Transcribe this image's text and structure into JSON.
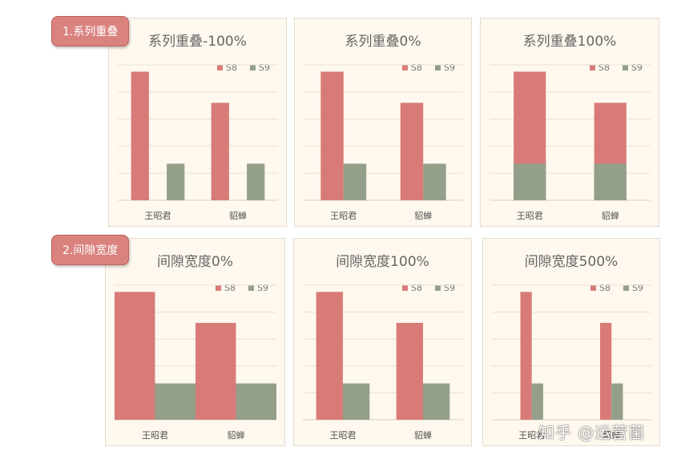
{
  "sections": [
    {
      "label": "1.系列重叠"
    },
    {
      "label": "2.间隙宽度"
    }
  ],
  "colors": {
    "S8": "#d87b78",
    "S9": "#949f8a",
    "tag": "#d9827e",
    "panel": "#fef8ee"
  },
  "watermark": "知乎 @运营菌",
  "chart_data": [
    {
      "type": "bar",
      "title": "系列重叠-100%",
      "categories": [
        "王昭君",
        "貂蝉"
      ],
      "series": [
        {
          "name": "S8",
          "values": [
            95,
            72
          ]
        },
        {
          "name": "S9",
          "values": [
            27,
            27
          ]
        }
      ],
      "ylim": [
        0,
        100
      ],
      "grid": true,
      "legend": "top-right",
      "overlap_pct": -100,
      "gap_width_pct": 150
    },
    {
      "type": "bar",
      "title": "系列重叠0%",
      "categories": [
        "王昭君",
        "貂蝉"
      ],
      "series": [
        {
          "name": "S8",
          "values": [
            95,
            72
          ]
        },
        {
          "name": "S9",
          "values": [
            27,
            27
          ]
        }
      ],
      "ylim": [
        0,
        100
      ],
      "grid": true,
      "legend": "top-right",
      "overlap_pct": 0,
      "gap_width_pct": 150
    },
    {
      "type": "bar",
      "title": "系列重叠100%",
      "categories": [
        "王昭君",
        "貂蝉"
      ],
      "series": [
        {
          "name": "S8",
          "values": [
            95,
            72
          ]
        },
        {
          "name": "S9",
          "values": [
            27,
            27
          ]
        }
      ],
      "ylim": [
        0,
        100
      ],
      "grid": true,
      "legend": "top-right",
      "overlap_pct": 100,
      "gap_width_pct": 150
    },
    {
      "type": "bar",
      "title": "间隙宽度0%",
      "categories": [
        "王昭君",
        "貂蝉"
      ],
      "series": [
        {
          "name": "S8",
          "values": [
            95,
            72
          ]
        },
        {
          "name": "S9",
          "values": [
            27,
            27
          ]
        }
      ],
      "ylim": [
        0,
        100
      ],
      "grid": true,
      "legend": "top-right",
      "overlap_pct": 0,
      "gap_width_pct": 0
    },
    {
      "type": "bar",
      "title": "间隙宽度100%",
      "categories": [
        "王昭君",
        "貂蝉"
      ],
      "series": [
        {
          "name": "S8",
          "values": [
            95,
            72
          ]
        },
        {
          "name": "S9",
          "values": [
            27,
            27
          ]
        }
      ],
      "ylim": [
        0,
        100
      ],
      "grid": true,
      "legend": "top-right",
      "overlap_pct": 0,
      "gap_width_pct": 100
    },
    {
      "type": "bar",
      "title": "间隙宽度500%",
      "categories": [
        "王昭君",
        "貂蝉"
      ],
      "series": [
        {
          "name": "S8",
          "values": [
            95,
            72
          ]
        },
        {
          "name": "S9",
          "values": [
            27,
            27
          ]
        }
      ],
      "ylim": [
        0,
        100
      ],
      "grid": true,
      "legend": "top-right",
      "overlap_pct": 0,
      "gap_width_pct": 500
    }
  ]
}
